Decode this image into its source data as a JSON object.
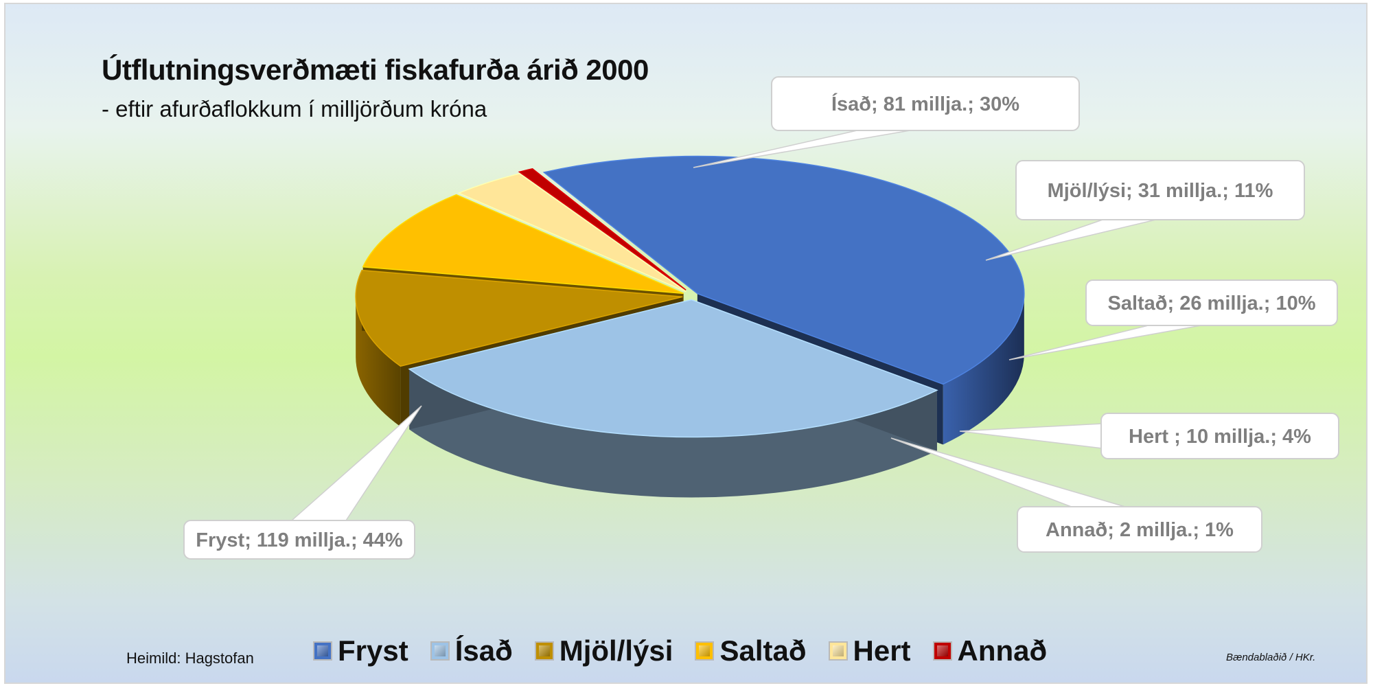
{
  "chart_data": {
    "type": "pie",
    "title": "Útflutningsverðmæti fiskafurða árið 2000",
    "subtitle": "- eftir afurðaflokkum í milljörðum króna",
    "slices": [
      {
        "name": "Fryst",
        "value": 119,
        "percent": 44,
        "label": "Fryst; 119 millja.; 44%",
        "color": "#4472c4"
      },
      {
        "name": "Ísað",
        "value": 81,
        "percent": 30,
        "label": "Ísað; 81 millja.; 30%",
        "color": "#9dc3e6"
      },
      {
        "name": "Mjöl/lýsi",
        "value": 31,
        "percent": 11,
        "label": "Mjöl/lýsi; 31 millja.; 11%",
        "color": "#bf8f00"
      },
      {
        "name": "Saltað",
        "value": 26,
        "percent": 10,
        "label": "Saltað; 26 millja.; 10%",
        "color": "#ffc000"
      },
      {
        "name": "Hert",
        "value": 10,
        "percent": 4,
        "label": "Hert ; 10 millja.; 4%",
        "color": "#ffe699"
      },
      {
        "name": "Annað",
        "value": 2,
        "percent": 1,
        "label": "Annað; 2 millja.; 1%",
        "color": "#c00000"
      }
    ],
    "legend_position": "bottom",
    "style": "3d exploded pie"
  },
  "source": "Heimild: Hagstofan",
  "credit": "Bændablaðið / HKr."
}
